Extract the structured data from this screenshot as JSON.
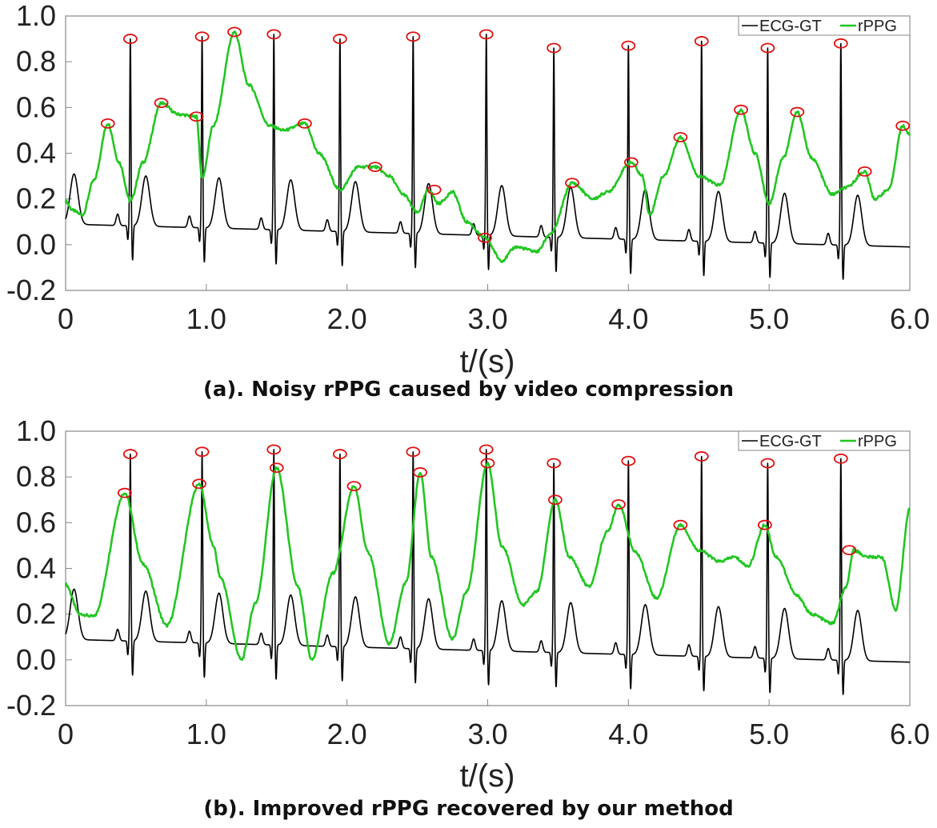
{
  "chart_data": [
    {
      "type": "line",
      "caption": "(a). Noisy rPPG caused by video compression",
      "xlabel": "t/(s)",
      "ylabel": "",
      "xlim": [
        0,
        6.0
      ],
      "ylim": [
        -0.2,
        1.0
      ],
      "x_ticks": [
        0,
        1.0,
        2.0,
        3.0,
        4.0,
        5.0,
        6.0
      ],
      "x_tick_labels": [
        "0",
        "1.0",
        "2.0",
        "3.0",
        "4.0",
        "5.0",
        "6.0"
      ],
      "y_ticks": [
        1.0,
        0.8,
        0.6,
        0.4,
        0.2,
        0.0,
        -0.2
      ],
      "y_tick_labels": [
        "1.0",
        "0.8",
        "0.6",
        "0.4",
        "0.2",
        "0.0",
        "-0.2"
      ],
      "grid": false,
      "legend": {
        "position": "top-right",
        "entries": [
          "ECG-GT",
          "rPPG"
        ]
      },
      "colors": {
        "ecg": "#000000",
        "rppg": "#22c622",
        "peak_marker": "#e01010"
      },
      "series": [
        {
          "name": "ECG-GT",
          "r_peaks": [
            {
              "t": 0.46,
              "v": 0.9
            },
            {
              "t": 0.97,
              "v": 0.91
            },
            {
              "t": 1.48,
              "v": 0.92
            },
            {
              "t": 1.95,
              "v": 0.9
            },
            {
              "t": 2.47,
              "v": 0.91
            },
            {
              "t": 2.99,
              "v": 0.92
            },
            {
              "t": 3.47,
              "v": 0.86
            },
            {
              "t": 4.0,
              "v": 0.87
            },
            {
              "t": 4.52,
              "v": 0.89
            },
            {
              "t": 4.99,
              "v": 0.86
            },
            {
              "t": 5.51,
              "v": 0.88
            }
          ],
          "t_waves": [
            0.06,
            0.57,
            1.09,
            1.6,
            2.06,
            2.58,
            3.1,
            3.59,
            4.12,
            4.64,
            5.11,
            5.63
          ],
          "baseline_start": 0.09,
          "baseline_end": -0.01
        },
        {
          "name": "rPPG",
          "x": [
            0,
            0.05,
            0.12,
            0.2,
            0.3,
            0.38,
            0.46,
            0.55,
            0.68,
            0.8,
            0.93,
            0.97,
            1.05,
            1.2,
            1.3,
            1.45,
            1.55,
            1.7,
            1.8,
            1.95,
            2.08,
            2.2,
            2.3,
            2.4,
            2.5,
            2.58,
            2.65,
            2.75,
            2.85,
            2.98,
            3.1,
            3.2,
            3.35,
            3.45,
            3.6,
            3.75,
            3.85,
            4.02,
            4.1,
            4.15,
            4.25,
            4.37,
            4.5,
            4.65,
            4.8,
            4.9,
            5.0,
            5.1,
            5.2,
            5.3,
            5.45,
            5.55,
            5.68,
            5.75,
            5.85,
            5.95,
            6.0
          ],
          "values": [
            0.19,
            0.15,
            0.13,
            0.28,
            0.53,
            0.36,
            0.19,
            0.36,
            0.62,
            0.57,
            0.56,
            0.29,
            0.52,
            0.93,
            0.7,
            0.52,
            0.5,
            0.53,
            0.4,
            0.24,
            0.34,
            0.34,
            0.3,
            0.22,
            0.14,
            0.24,
            0.18,
            0.23,
            0.1,
            0.03,
            -0.07,
            -0.01,
            -0.03,
            0.05,
            0.27,
            0.2,
            0.23,
            0.36,
            0.3,
            0.13,
            0.3,
            0.47,
            0.3,
            0.26,
            0.59,
            0.4,
            0.18,
            0.38,
            0.58,
            0.38,
            0.22,
            0.25,
            0.32,
            0.2,
            0.24,
            0.52,
            0.48
          ],
          "marked_peaks": [
            {
              "t": 0.3,
              "v": 0.53
            },
            {
              "t": 0.68,
              "v": 0.62
            },
            {
              "t": 0.93,
              "v": 0.56
            },
            {
              "t": 1.2,
              "v": 0.93
            },
            {
              "t": 1.7,
              "v": 0.53
            },
            {
              "t": 2.2,
              "v": 0.34
            },
            {
              "t": 2.62,
              "v": 0.24
            },
            {
              "t": 2.98,
              "v": 0.03
            },
            {
              "t": 3.6,
              "v": 0.27
            },
            {
              "t": 4.02,
              "v": 0.36
            },
            {
              "t": 4.37,
              "v": 0.47
            },
            {
              "t": 4.8,
              "v": 0.59
            },
            {
              "t": 5.2,
              "v": 0.58
            },
            {
              "t": 5.68,
              "v": 0.32
            },
            {
              "t": 5.95,
              "v": 0.52
            }
          ]
        }
      ]
    },
    {
      "type": "line",
      "caption": "(b). Improved rPPG recovered by our method",
      "xlabel": "t/(s)",
      "ylabel": "",
      "xlim": [
        0,
        6.0
      ],
      "ylim": [
        -0.2,
        1.0
      ],
      "x_ticks": [
        0,
        1.0,
        2.0,
        3.0,
        4.0,
        5.0,
        6.0
      ],
      "x_tick_labels": [
        "0",
        "1.0",
        "2.0",
        "3.0",
        "4.0",
        "5.0",
        "6.0"
      ],
      "y_ticks": [
        1.0,
        0.8,
        0.6,
        0.4,
        0.2,
        0.0,
        -0.2
      ],
      "y_tick_labels": [
        "1.0",
        "0.8",
        "0.6",
        "0.4",
        "0.2",
        "0.0",
        "-0.2"
      ],
      "grid": false,
      "legend": {
        "position": "top-right",
        "entries": [
          "ECG-GT",
          "rPPG"
        ]
      },
      "colors": {
        "ecg": "#000000",
        "rppg": "#22c622",
        "peak_marker": "#e01010"
      },
      "series": [
        {
          "name": "ECG-GT",
          "r_peaks": [
            {
              "t": 0.46,
              "v": 0.9
            },
            {
              "t": 0.97,
              "v": 0.91
            },
            {
              "t": 1.48,
              "v": 0.92
            },
            {
              "t": 1.95,
              "v": 0.9
            },
            {
              "t": 2.47,
              "v": 0.91
            },
            {
              "t": 2.99,
              "v": 0.92
            },
            {
              "t": 3.47,
              "v": 0.86
            },
            {
              "t": 4.0,
              "v": 0.87
            },
            {
              "t": 4.52,
              "v": 0.89
            },
            {
              "t": 4.99,
              "v": 0.86
            },
            {
              "t": 5.51,
              "v": 0.88
            }
          ],
          "t_waves": [
            0.06,
            0.57,
            1.09,
            1.6,
            2.06,
            2.58,
            3.1,
            3.59,
            4.12,
            4.64,
            5.11,
            5.63
          ],
          "baseline_start": 0.09,
          "baseline_end": -0.01
        },
        {
          "name": "rPPG",
          "x": [
            0,
            0.1,
            0.2,
            0.42,
            0.55,
            0.72,
            0.95,
            1.05,
            1.1,
            1.25,
            1.35,
            1.5,
            1.65,
            1.75,
            1.9,
            2.05,
            2.15,
            2.3,
            2.42,
            2.52,
            2.6,
            2.75,
            2.85,
            3.0,
            3.1,
            3.25,
            3.35,
            3.48,
            3.58,
            3.72,
            3.85,
            3.93,
            4.05,
            4.2,
            4.37,
            4.5,
            4.65,
            4.75,
            4.85,
            4.97,
            5.05,
            5.2,
            5.3,
            5.45,
            5.55,
            5.6,
            5.7,
            5.8,
            5.9,
            6.0
          ],
          "values": [
            0.33,
            0.2,
            0.19,
            0.73,
            0.42,
            0.15,
            0.77,
            0.5,
            0.36,
            0.0,
            0.25,
            0.84,
            0.32,
            0.0,
            0.38,
            0.76,
            0.47,
            0.07,
            0.34,
            0.82,
            0.45,
            0.09,
            0.3,
            0.86,
            0.5,
            0.24,
            0.3,
            0.7,
            0.45,
            0.32,
            0.56,
            0.68,
            0.47,
            0.27,
            0.59,
            0.48,
            0.43,
            0.45,
            0.41,
            0.59,
            0.45,
            0.28,
            0.2,
            0.16,
            0.32,
            0.48,
            0.45,
            0.45,
            0.22,
            0.66
          ],
          "marked_peaks": [
            {
              "t": 0.42,
              "v": 0.73
            },
            {
              "t": 0.95,
              "v": 0.77
            },
            {
              "t": 1.5,
              "v": 0.84
            },
            {
              "t": 2.05,
              "v": 0.76
            },
            {
              "t": 2.52,
              "v": 0.82
            },
            {
              "t": 3.0,
              "v": 0.86
            },
            {
              "t": 3.48,
              "v": 0.7
            },
            {
              "t": 3.93,
              "v": 0.68
            },
            {
              "t": 4.37,
              "v": 0.59
            },
            {
              "t": 4.97,
              "v": 0.59
            },
            {
              "t": 5.57,
              "v": 0.48
            }
          ]
        }
      ]
    }
  ]
}
